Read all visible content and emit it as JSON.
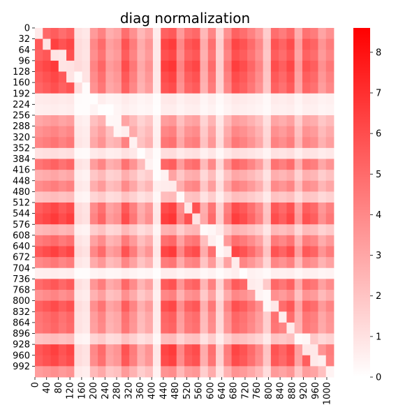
{
  "chart_data": {
    "type": "heatmap",
    "title": "diag normalization",
    "xlabel": "",
    "ylabel": "",
    "matrix_size": 1024,
    "x_tick_labels": [
      "0",
      "40",
      "80",
      "120",
      "160",
      "200",
      "240",
      "280",
      "320",
      "360",
      "400",
      "440",
      "480",
      "520",
      "560",
      "600",
      "640",
      "680",
      "720",
      "760",
      "800",
      "840",
      "880",
      "920",
      "960",
      "1000"
    ],
    "y_tick_labels": [
      "0",
      "32",
      "64",
      "96",
      "128",
      "160",
      "192",
      "224",
      "256",
      "288",
      "320",
      "352",
      "384",
      "416",
      "448",
      "480",
      "512",
      "544",
      "576",
      "608",
      "640",
      "672",
      "704",
      "736",
      "768",
      "800",
      "832",
      "864",
      "896",
      "928",
      "960",
      "992"
    ],
    "colorbar": {
      "vmin": 0,
      "vmax": 8.6,
      "ticks": [
        "0",
        "1",
        "2",
        "3",
        "4",
        "5",
        "6",
        "7",
        "8"
      ],
      "colormap": [
        "#ffffff",
        "#ff0000"
      ]
    },
    "row_profile": [
      0.72,
      0.85,
      0.8,
      0.88,
      0.82,
      0.78,
      0.1,
      0.08,
      0.45,
      0.55,
      0.62,
      0.15,
      0.7,
      0.4,
      0.58,
      0.3,
      0.82,
      0.88,
      0.35,
      0.66,
      0.85,
      0.6,
      0.08,
      0.75,
      0.55,
      0.8,
      0.7,
      0.68,
      0.3,
      0.85,
      0.82,
      0.5
    ],
    "col_profile": [
      0.7,
      0.75,
      0.8,
      0.72,
      0.78,
      0.15,
      0.12,
      0.5,
      0.62,
      0.4,
      0.45,
      0.72,
      0.55,
      0.35,
      0.45,
      0.1,
      0.78,
      0.82,
      0.5,
      0.7,
      0.75,
      0.35,
      0.6,
      0.2,
      0.55,
      0.78,
      0.72,
      0.62,
      0.5,
      0.25,
      0.72,
      0.65,
      0.75,
      0.4,
      0.7,
      0.65,
      0.45,
      0.55
    ]
  }
}
